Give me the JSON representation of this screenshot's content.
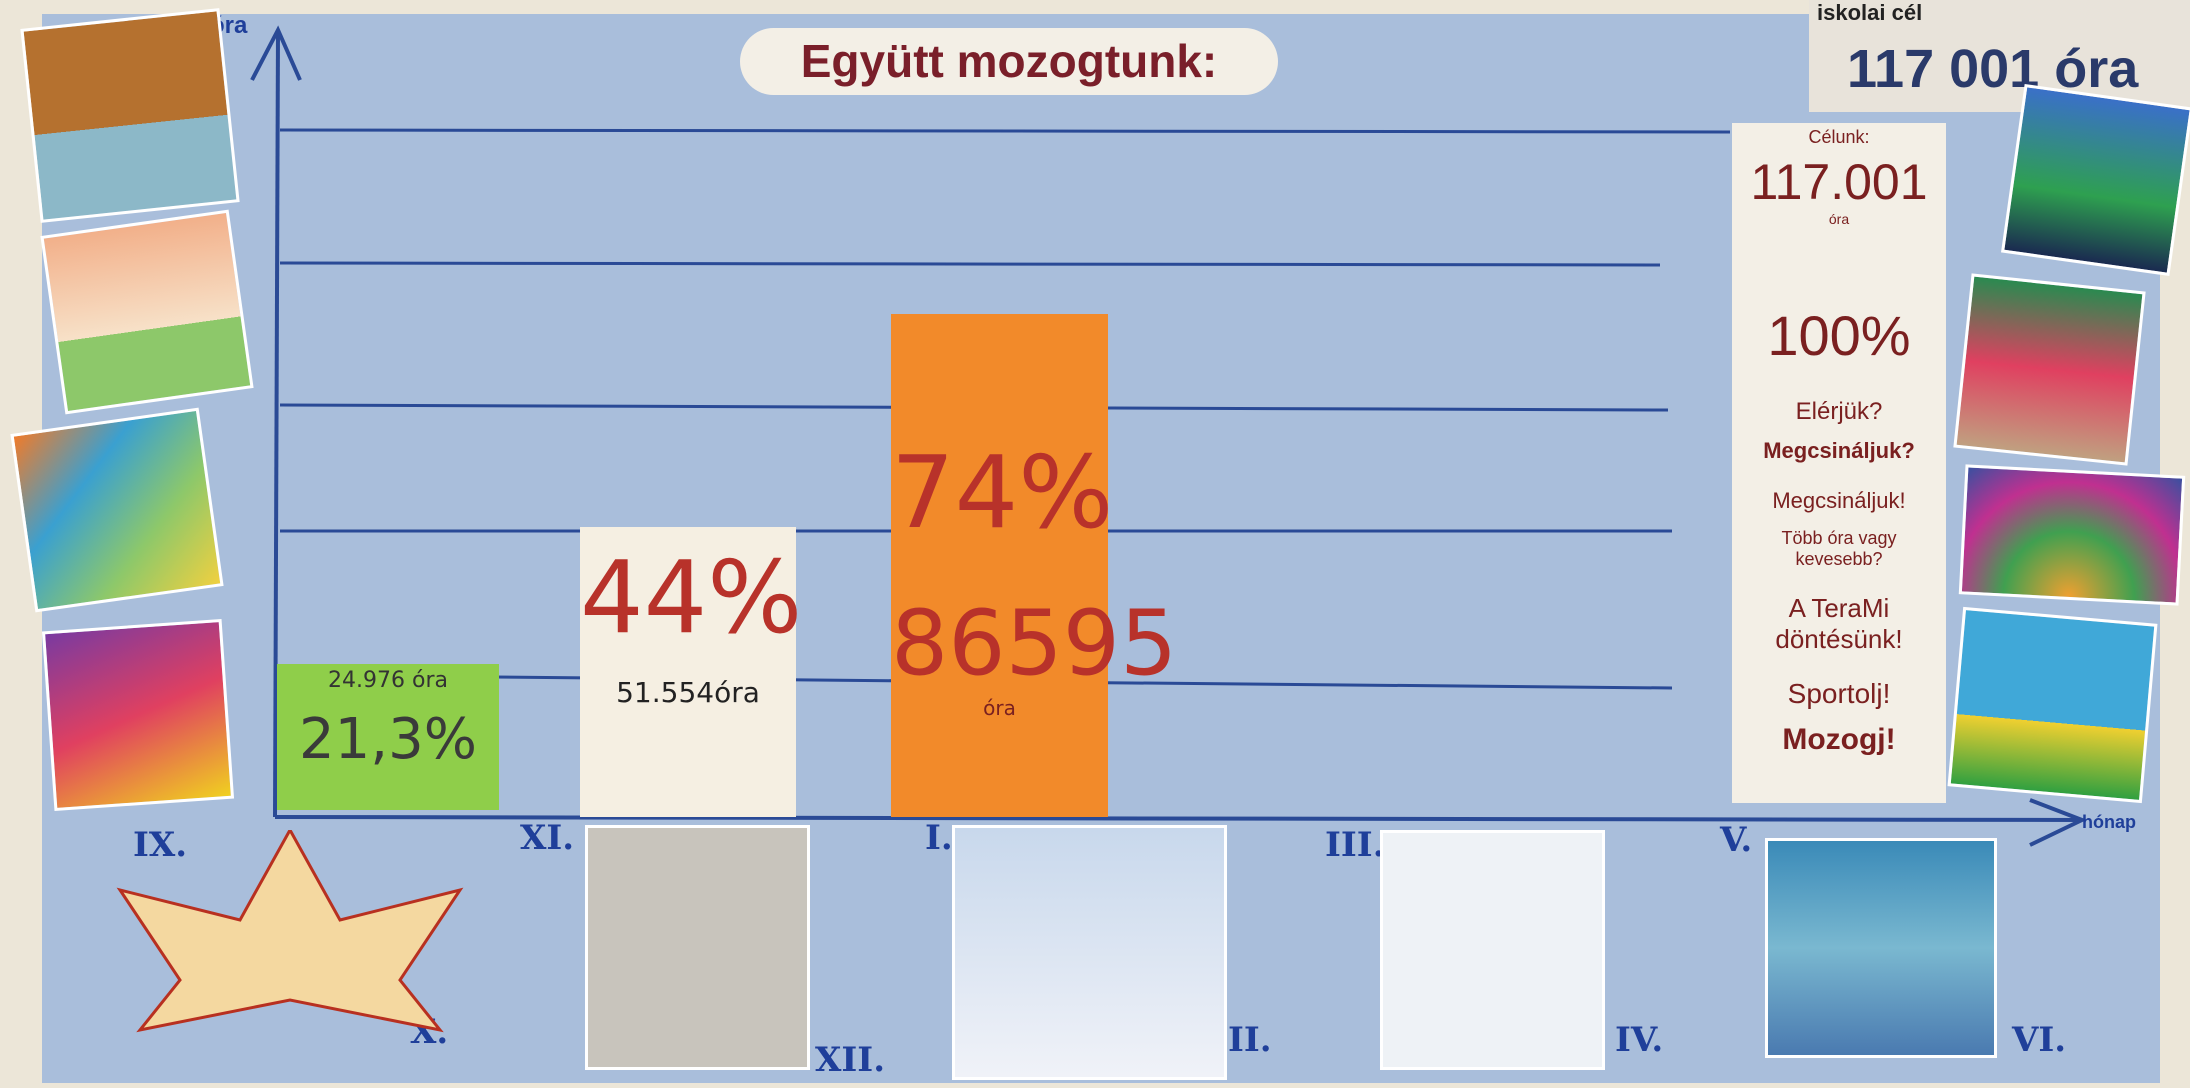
{
  "board": {
    "title": "Együtt mozogtunk:",
    "goal": {
      "label": "iskolai cél",
      "value": "117 001 óra"
    },
    "y_axis_label": "óra",
    "x_axis_label": "hónap",
    "notes": [
      {
        "lines": [
          "24.976 óra",
          "21,3%"
        ]
      },
      {
        "lines": [
          "44%",
          "51.554óra"
        ]
      },
      {
        "lines": [
          "74%",
          "86595",
          "óra"
        ]
      }
    ],
    "target_column": [
      "Célunk:",
      "117.001",
      "óra",
      "100%",
      "Elérjük?",
      "Megcsináljuk?",
      "Megcsináljuk!",
      "Több óra vagy kevesebb?",
      "A TeraMi döntésünk!",
      "Sportolj!",
      "Mozogj!"
    ],
    "months": [
      "IX.",
      "X.",
      "XI.",
      "XII.",
      "I.",
      "II.",
      "III.",
      "IV.",
      "V.",
      "VI."
    ]
  }
}
